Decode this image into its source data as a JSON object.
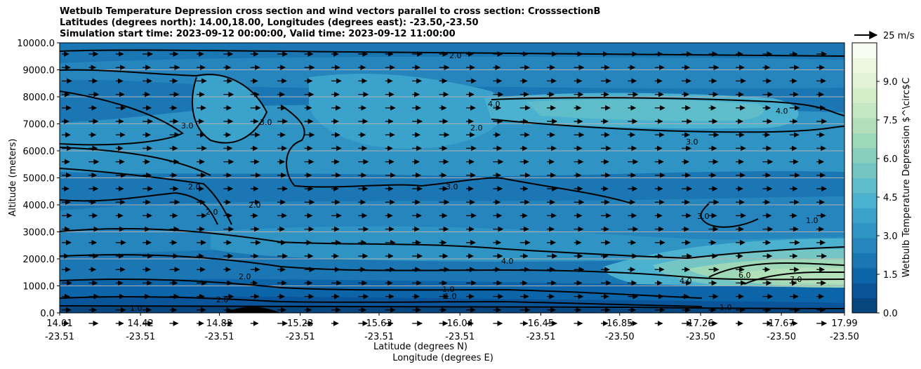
{
  "titles": {
    "line1": "Wetbulb Temperature Depression cross section and wind vectors parallel to cross section: CrosssectionB",
    "line2": "Latitudes (degrees north): 14.00,18.00, Longitudes (degrees east): -23.50,-23.50",
    "line3": "Simulation start time: 2023-09-12 00:00:00, Valid time: 2023-09-12 11:00:00"
  },
  "chart_data": {
    "type": "contourf",
    "title": "Wetbulb Temperature Depression cross section and wind vectors parallel to cross section: CrosssectionB",
    "ylabel": "Altitude (meters)",
    "xlabel_1": "Latitude (degrees N)",
    "xlabel_2": "Longitude (degrees E)",
    "ylim": [
      0,
      10000
    ],
    "y_ticks": [
      "0.0",
      "1000.0",
      "2000.0",
      "3000.0",
      "4000.0",
      "5000.0",
      "6000.0",
      "7000.0",
      "8000.0",
      "9000.0",
      "10000.0"
    ],
    "y_tick_values": [
      0,
      1000,
      2000,
      3000,
      4000,
      5000,
      6000,
      7000,
      8000,
      9000,
      10000
    ],
    "x_ticks_lat": [
      "14.01",
      "14.42",
      "14.82",
      "15.23",
      "15.63",
      "16.04",
      "16.45",
      "16.85",
      "17.26",
      "17.67",
      "17.99"
    ],
    "x_ticks_lon": [
      "-23.51",
      "-23.51",
      "-23.51",
      "-23.51",
      "-23.51",
      "-23.51",
      "-23.51",
      "-23.50",
      "-23.50",
      "-23.50",
      "-23.50"
    ],
    "x_tick_values": [
      14.01,
      14.42,
      14.82,
      15.23,
      15.63,
      16.04,
      16.45,
      16.85,
      17.26,
      17.67,
      17.99
    ],
    "xlim": [
      14.01,
      17.99
    ],
    "colorbar": {
      "label": "Wetbulb Temperature Depression $^\\circ$C",
      "min": 0,
      "max": 10.5,
      "ticks": [
        "0.0",
        "1.5",
        "3.0",
        "4.5",
        "6.0",
        "7.5",
        "9.0"
      ],
      "tick_values": [
        0,
        1.5,
        3,
        4.5,
        6,
        7.5,
        9
      ],
      "colors": [
        "#08467f",
        "#0a559a",
        "#0c65a8",
        "#1b76b4",
        "#2585bc",
        "#2f94c4",
        "#3ba3cb",
        "#4bb1ce",
        "#5fbdca",
        "#73c6c4",
        "#88cfbe",
        "#9dd8b8",
        "#b1e0b9",
        "#c3e7c0",
        "#d3edc9",
        "#e1f3d4",
        "#edf8e0",
        "#f7fcf0"
      ]
    },
    "contour_levels": [
      "1.0",
      "2.0",
      "3.0",
      "4.0",
      "6.0",
      "7.0"
    ],
    "contour_labels": [
      "2.0",
      "3.0",
      "3.0",
      "4.0",
      "2.0",
      "4.0",
      "3.0",
      "2.0",
      "2.0",
      "2.0",
      "3.0",
      "3.0",
      "1.0",
      "4.0",
      "4.0",
      "6.0",
      "7.0",
      "2.0",
      "1.0",
      "2.0",
      "1.0",
      "1.0",
      "1.0"
    ],
    "quiver_key": "25 m/s",
    "wind": "horizontal wind vectors directed toward increasing latitude (northward) throughout the section"
  }
}
